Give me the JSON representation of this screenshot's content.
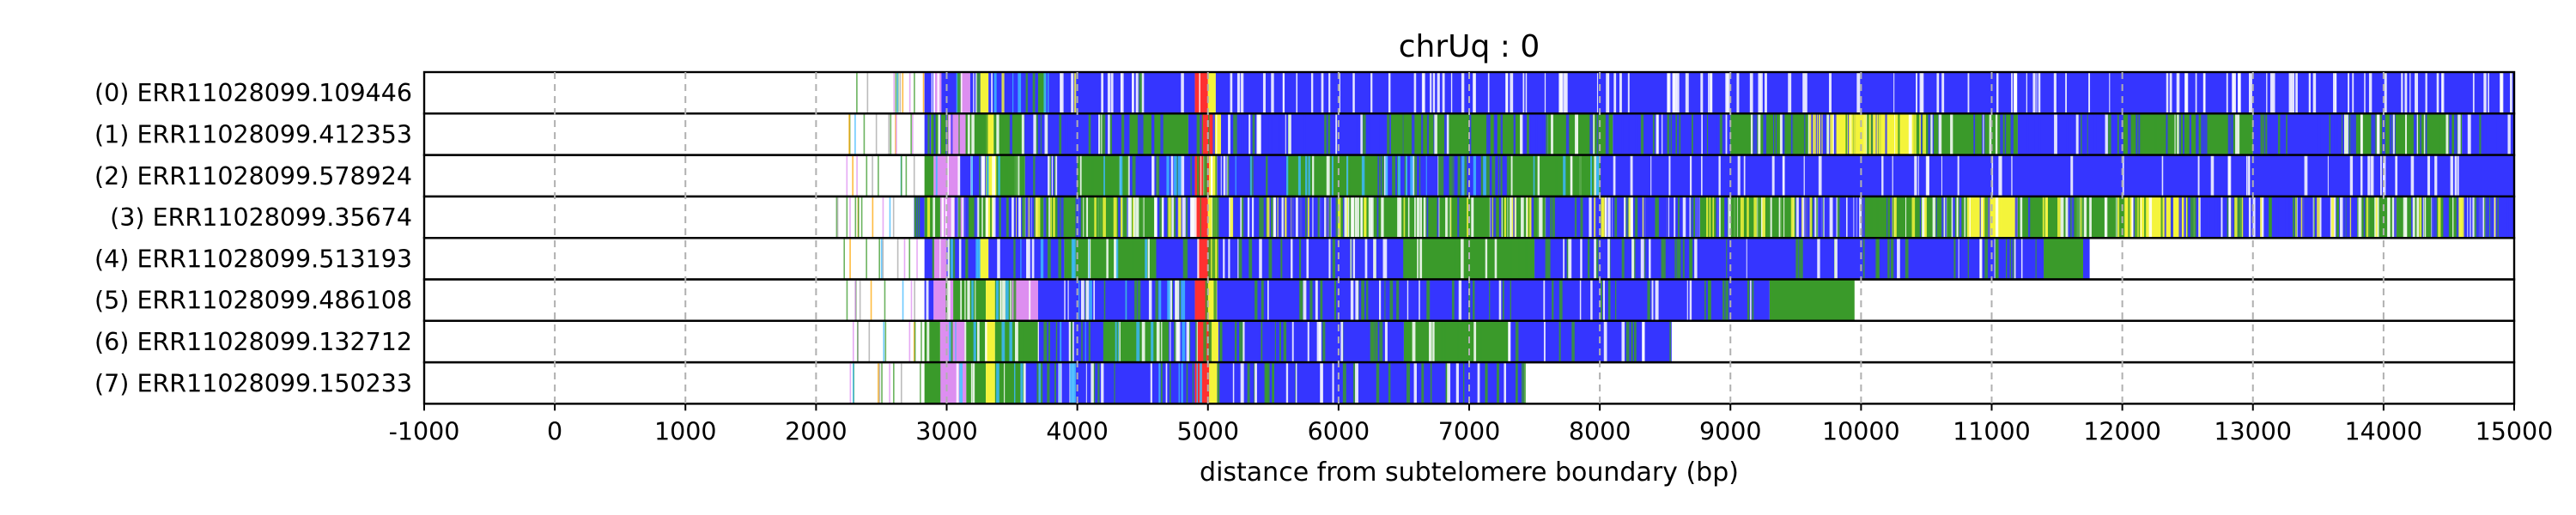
{
  "chart_data": {
    "type": "heatmap",
    "title": "chrUq : 0",
    "xlabel": "distance from subtelomere boundary (bp)",
    "ylabel": "",
    "xlim": [
      -1000,
      15000
    ],
    "xticks": [
      -1000,
      0,
      1000,
      2000,
      3000,
      4000,
      5000,
      6000,
      7000,
      8000,
      9000,
      10000,
      11000,
      12000,
      13000,
      14000,
      15000
    ],
    "xtick_labels": [
      "-1000",
      "0",
      "1000",
      "2000",
      "3000",
      "4000",
      "5000",
      "6000",
      "7000",
      "8000",
      "9000",
      "10000",
      "11000",
      "12000",
      "13000",
      "14000",
      "15000"
    ],
    "grid": "vertical dashed at x ticks",
    "colors": {
      "blue": "#3535ff",
      "green": "#3a9a2a",
      "yellow": "#f4f43a",
      "red": "#ff3030",
      "orange": "#ffa500",
      "violet": "#dd8ef0",
      "cyan": "#3cb8ff",
      "white": "#ffffff",
      "black": "#000000",
      "gray": "#a6a6a6"
    },
    "reads": [
      {
        "label": "(0) ERR11028099.109446",
        "start": 2830,
        "end": 15000,
        "prefix": [
          [
            2200,
            2820,
            11
          ]
        ],
        "segments": [
          [
            2830,
            2900,
            "blue"
          ],
          [
            2900,
            2960,
            "violet"
          ],
          [
            2960,
            3100,
            "blue"
          ],
          [
            3100,
            3180,
            "violet"
          ],
          [
            3180,
            3260,
            "blue"
          ],
          [
            3260,
            3320,
            "yellow"
          ],
          [
            3320,
            3700,
            "blue"
          ],
          [
            3700,
            3760,
            "green"
          ],
          [
            3760,
            4900,
            "blue"
          ],
          [
            4900,
            5000,
            "red"
          ],
          [
            5000,
            5060,
            "yellow"
          ],
          [
            5060,
            15000,
            "blue"
          ]
        ],
        "stripes": [
          [
            2830,
            15000,
            0.085,
            "white"
          ],
          [
            2900,
            4200,
            0.03,
            "cyan"
          ],
          [
            3000,
            4500,
            0.02,
            "green"
          ],
          [
            3200,
            4200,
            0.02,
            "yellow"
          ]
        ]
      },
      {
        "label": "(1) ERR11028099.412353",
        "start": 2830,
        "end": 15000,
        "prefix": [
          [
            2200,
            2820,
            11
          ]
        ],
        "segments": [
          [
            2830,
            2880,
            "blue"
          ],
          [
            2880,
            3000,
            "green"
          ],
          [
            3000,
            3150,
            "violet"
          ],
          [
            3150,
            3300,
            "green"
          ],
          [
            3300,
            3360,
            "yellow"
          ],
          [
            3360,
            3600,
            "green"
          ],
          [
            3600,
            4400,
            "blue"
          ],
          [
            4400,
            4850,
            "green"
          ],
          [
            4850,
            4940,
            "blue"
          ],
          [
            4940,
            5040,
            "red"
          ],
          [
            5040,
            5100,
            "yellow"
          ],
          [
            5100,
            6400,
            "blue"
          ],
          [
            6400,
            7400,
            "green"
          ],
          [
            7400,
            7600,
            "blue"
          ],
          [
            7600,
            8100,
            "green"
          ],
          [
            8100,
            9000,
            "blue"
          ],
          [
            9000,
            9600,
            "green"
          ],
          [
            9600,
            9800,
            "blue"
          ],
          [
            9800,
            10400,
            "yellow"
          ],
          [
            10400,
            11200,
            "green"
          ],
          [
            11200,
            12000,
            "blue"
          ],
          [
            12000,
            13000,
            "green"
          ],
          [
            13000,
            13700,
            "blue"
          ],
          [
            13700,
            14600,
            "green"
          ],
          [
            14600,
            15000,
            "blue"
          ]
        ],
        "stripes": [
          [
            2830,
            15000,
            0.09,
            "blue"
          ],
          [
            2830,
            15000,
            0.05,
            "green"
          ],
          [
            2830,
            15000,
            0.04,
            "white"
          ],
          [
            9600,
            10500,
            0.2,
            "yellow"
          ]
        ]
      },
      {
        "label": "(2) ERR11028099.578924",
        "start": 2830,
        "end": 15000,
        "prefix": [
          [
            2200,
            2820,
            10
          ]
        ],
        "segments": [
          [
            2830,
            2900,
            "green"
          ],
          [
            2900,
            3100,
            "violet"
          ],
          [
            3100,
            3300,
            "blue"
          ],
          [
            3300,
            3380,
            "yellow"
          ],
          [
            3380,
            3600,
            "green"
          ],
          [
            3600,
            4000,
            "blue"
          ],
          [
            4000,
            4400,
            "green"
          ],
          [
            4400,
            4900,
            "blue"
          ],
          [
            4900,
            5010,
            "red"
          ],
          [
            5010,
            5070,
            "yellow"
          ],
          [
            5070,
            5600,
            "blue"
          ],
          [
            5600,
            6300,
            "green"
          ],
          [
            6300,
            7300,
            "blue"
          ],
          [
            7300,
            8000,
            "green"
          ],
          [
            8000,
            15000,
            "blue"
          ]
        ],
        "stripes": [
          [
            2830,
            15000,
            0.05,
            "white"
          ],
          [
            2830,
            8000,
            0.08,
            "green"
          ],
          [
            2830,
            8000,
            0.04,
            "cyan"
          ]
        ]
      },
      {
        "label": "(3) ERR11028099.35674",
        "start": 2750,
        "end": 15000,
        "prefix": [
          [
            2150,
            2740,
            12
          ]
        ],
        "segments": [
          [
            2750,
            2830,
            "blue"
          ],
          [
            2830,
            2950,
            "green"
          ],
          [
            2950,
            3150,
            "violet"
          ],
          [
            3150,
            3300,
            "green"
          ],
          [
            3300,
            3360,
            "yellow"
          ],
          [
            3360,
            3700,
            "blue"
          ],
          [
            3700,
            4600,
            "green"
          ],
          [
            4600,
            4900,
            "blue"
          ],
          [
            4900,
            5000,
            "red"
          ],
          [
            5000,
            5070,
            "yellow"
          ],
          [
            5070,
            6000,
            "blue"
          ],
          [
            6000,
            7600,
            "green"
          ],
          [
            7600,
            8700,
            "blue"
          ],
          [
            8700,
            9500,
            "green"
          ],
          [
            9500,
            10000,
            "blue"
          ],
          [
            10000,
            10800,
            "green"
          ],
          [
            10800,
            11200,
            "yellow"
          ],
          [
            11200,
            12000,
            "green"
          ],
          [
            12000,
            12500,
            "yellow"
          ],
          [
            12500,
            13800,
            "blue"
          ],
          [
            13800,
            14600,
            "green"
          ],
          [
            14600,
            15000,
            "blue"
          ]
        ],
        "stripes": [
          [
            2750,
            15000,
            0.12,
            "white"
          ],
          [
            2750,
            15000,
            0.08,
            "green"
          ],
          [
            2750,
            15000,
            0.05,
            "yellow"
          ],
          [
            2750,
            15000,
            0.06,
            "blue"
          ]
        ]
      },
      {
        "label": "(4) ERR11028099.513193",
        "start": 2830,
        "end": 11750,
        "prefix": [
          [
            2200,
            2820,
            10
          ]
        ],
        "segments": [
          [
            2830,
            2900,
            "blue"
          ],
          [
            2900,
            3000,
            "violet"
          ],
          [
            3000,
            3250,
            "blue"
          ],
          [
            3250,
            3320,
            "yellow"
          ],
          [
            3320,
            3900,
            "blue"
          ],
          [
            3900,
            4600,
            "green"
          ],
          [
            4600,
            4920,
            "blue"
          ],
          [
            4920,
            5020,
            "red"
          ],
          [
            5020,
            5080,
            "yellow"
          ],
          [
            5080,
            6500,
            "blue"
          ],
          [
            6500,
            7500,
            "green"
          ],
          [
            7500,
            11400,
            "blue"
          ],
          [
            11400,
            11700,
            "green"
          ],
          [
            11700,
            11750,
            "blue"
          ]
        ],
        "stripes": [
          [
            2830,
            11400,
            0.06,
            "green"
          ],
          [
            2830,
            11400,
            0.04,
            "white"
          ],
          [
            2830,
            5000,
            0.03,
            "cyan"
          ]
        ]
      },
      {
        "label": "(5) ERR11028099.486108",
        "start": 2830,
        "end": 9950,
        "prefix": [
          [
            2200,
            2820,
            10
          ]
        ],
        "segments": [
          [
            2830,
            2900,
            "blue"
          ],
          [
            2900,
            3050,
            "violet"
          ],
          [
            3050,
            3300,
            "green"
          ],
          [
            3300,
            3370,
            "yellow"
          ],
          [
            3370,
            3500,
            "green"
          ],
          [
            3500,
            3700,
            "violet"
          ],
          [
            3700,
            4900,
            "blue"
          ],
          [
            4900,
            5000,
            "red"
          ],
          [
            5000,
            5070,
            "yellow"
          ],
          [
            5070,
            9300,
            "blue"
          ],
          [
            9300,
            9950,
            "green"
          ]
        ],
        "stripes": [
          [
            2830,
            9300,
            0.05,
            "green"
          ],
          [
            2830,
            9300,
            0.04,
            "white"
          ],
          [
            2830,
            5000,
            0.03,
            "cyan"
          ]
        ]
      },
      {
        "label": "(6) ERR11028099.132712",
        "start": 2830,
        "end": 8550,
        "prefix": [
          [
            2200,
            2820,
            10
          ]
        ],
        "segments": [
          [
            2830,
            2950,
            "green"
          ],
          [
            2950,
            3150,
            "violet"
          ],
          [
            3150,
            3300,
            "green"
          ],
          [
            3300,
            3370,
            "yellow"
          ],
          [
            3370,
            3700,
            "green"
          ],
          [
            3700,
            4200,
            "blue"
          ],
          [
            4200,
            4700,
            "green"
          ],
          [
            4700,
            4920,
            "blue"
          ],
          [
            4920,
            5020,
            "red"
          ],
          [
            5020,
            5080,
            "yellow"
          ],
          [
            5080,
            6500,
            "blue"
          ],
          [
            6500,
            7300,
            "green"
          ],
          [
            7300,
            8550,
            "blue"
          ]
        ],
        "stripes": [
          [
            2830,
            8550,
            0.07,
            "green"
          ],
          [
            2830,
            8550,
            0.04,
            "white"
          ],
          [
            2830,
            5000,
            0.04,
            "cyan"
          ]
        ]
      },
      {
        "label": "(7) ERR11028099.150233",
        "start": 2830,
        "end": 7420,
        "prefix": [
          [
            2200,
            2820,
            10
          ]
        ],
        "segments": [
          [
            2830,
            2950,
            "green"
          ],
          [
            2950,
            3150,
            "violet"
          ],
          [
            3150,
            3300,
            "green"
          ],
          [
            3300,
            3370,
            "yellow"
          ],
          [
            3370,
            3600,
            "green"
          ],
          [
            3600,
            4900,
            "blue"
          ],
          [
            4900,
            5010,
            "red"
          ],
          [
            5010,
            5070,
            "yellow"
          ],
          [
            5070,
            7420,
            "blue"
          ]
        ],
        "stripes": [
          [
            2830,
            7420,
            0.06,
            "green"
          ],
          [
            2830,
            7420,
            0.04,
            "white"
          ],
          [
            2830,
            5000,
            0.04,
            "cyan"
          ]
        ]
      }
    ]
  }
}
